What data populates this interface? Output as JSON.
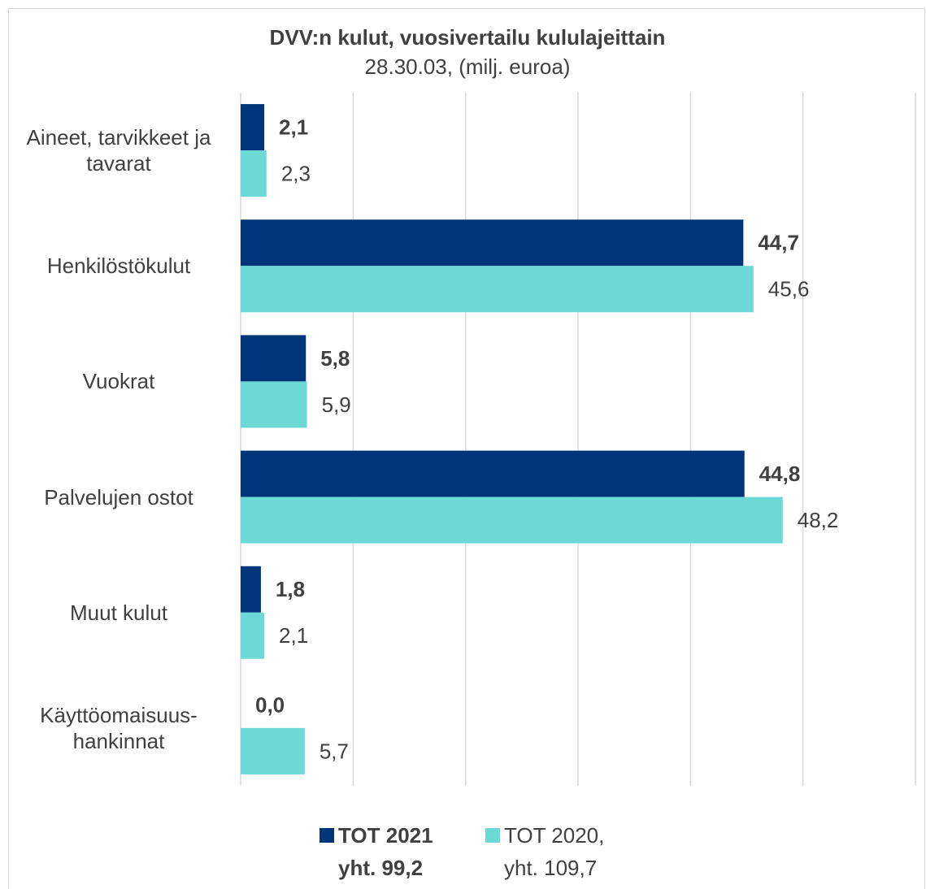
{
  "chart_data": {
    "type": "hbar",
    "title": "DVV:n kulut, vuosivertailu kululajeittain",
    "subtitle": "28.30.03, (milj. euroa)",
    "categories": [
      "Aineet, tarvikkeet ja tavarat",
      "Henkilöstökulut",
      "Vuokrat",
      "Palvelujen ostot",
      "Muut kulut",
      "Käyttöomaisuus-hankinnat"
    ],
    "series": [
      {
        "name": "TOT 2021 yht. 99,2",
        "color": "#00357a",
        "values": [
          2.1,
          44.7,
          5.8,
          44.8,
          1.8,
          0.0
        ],
        "value_labels": [
          "2,1",
          "44,7",
          "5,8",
          "44,8",
          "1,8",
          "0,0"
        ],
        "bold": true
      },
      {
        "name": "TOT 2020, yht. 109,7",
        "color": "#6cd9d6",
        "values": [
          2.3,
          45.6,
          5.9,
          48.2,
          2.1,
          5.7
        ],
        "value_labels": [
          "2,3",
          "45,6",
          "5,9",
          "48,2",
          "2,1",
          "5,7"
        ],
        "bold": false
      }
    ],
    "xlim": [
      0,
      60
    ],
    "xticks": [
      0,
      10,
      20,
      30,
      40,
      50,
      60
    ],
    "grid": true,
    "legend": "bottom"
  }
}
